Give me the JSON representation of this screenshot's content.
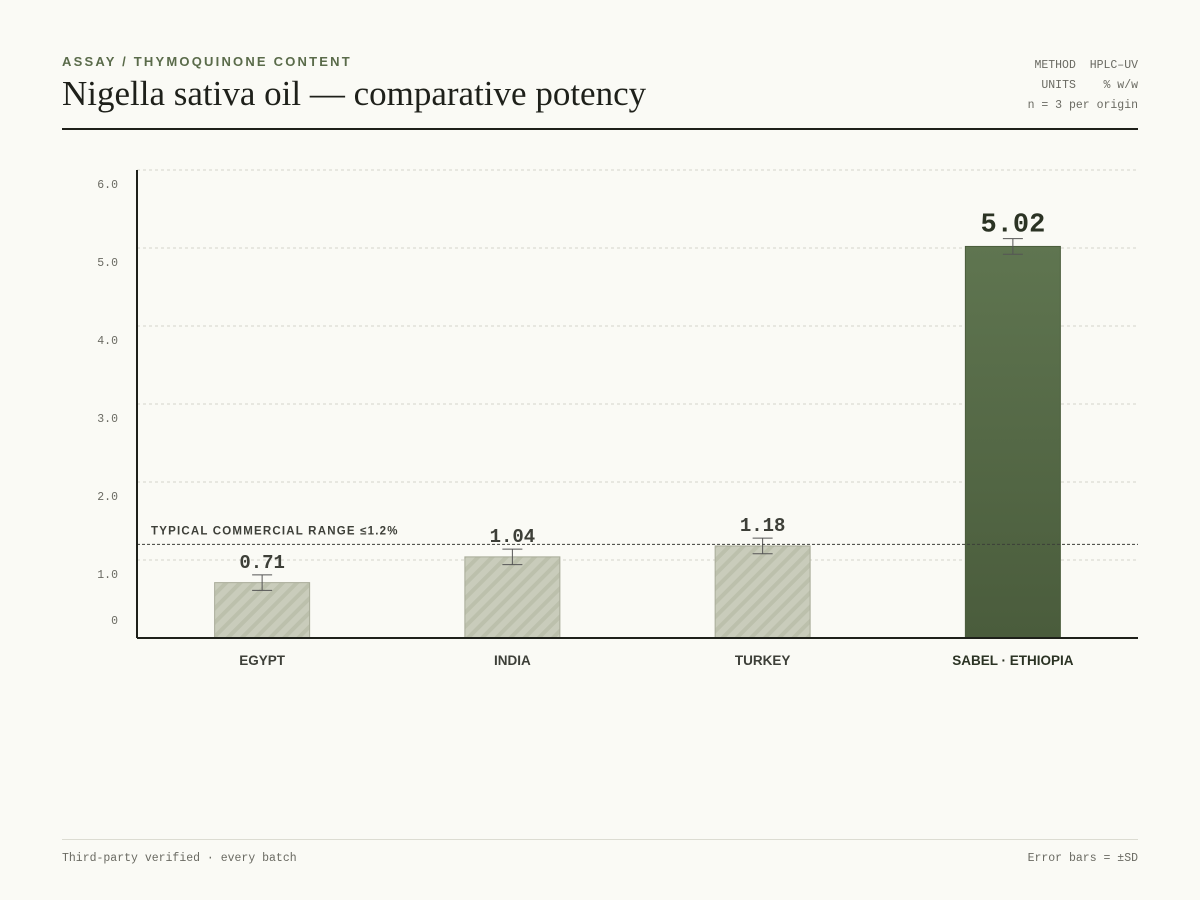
{
  "header": {
    "eyebrow": "ASSAY / THYMOQUINONE CONTENT",
    "title": "Nigella sativa oil — comparative potency",
    "meta": [
      {
        "label": "METHOD",
        "value": "HPLC–UV"
      },
      {
        "label": "UNITS",
        "value": "% w/w"
      },
      {
        "label": "n = 3 per origin",
        "value": ""
      }
    ]
  },
  "footer": {
    "left": "Third-party verified · every batch",
    "right": "Error bars = ±SD"
  },
  "chart_data": {
    "type": "bar",
    "title": "",
    "xlabel": "",
    "ylabel": "",
    "categories": [
      "EGYPT",
      "INDIA",
      "TURKEY",
      "SABEL · ETHIOPIA"
    ],
    "values": [
      0.71,
      1.04,
      1.18,
      5.02
    ],
    "value_labels": [
      "0.71",
      "1.04",
      "1.18",
      "5.02"
    ],
    "error_sd": [
      0.1,
      0.1,
      0.1,
      0.1
    ],
    "highlight_index": 3,
    "ylim": [
      0,
      6.0
    ],
    "yticks": [
      0,
      1.0,
      2.0,
      3.0,
      4.0,
      5.0,
      6.0
    ],
    "ytick_labels": [
      "0",
      "1.0",
      "2.0",
      "3.0",
      "4.0",
      "5.0",
      "6.0"
    ],
    "grid": true,
    "reference_line": {
      "value": 1.2,
      "label": "TYPICAL COMMERCIAL RANGE ≤1.2%"
    },
    "colors": {
      "highlight_top": "#5f7550",
      "highlight_bottom": "#4a5c3c",
      "muted": "#c9ccbb",
      "muted_stripe": "#bcc0ac",
      "muted_border": "#a8ab98",
      "axis": "#1e201a",
      "grid": "#d4d4ca"
    }
  }
}
